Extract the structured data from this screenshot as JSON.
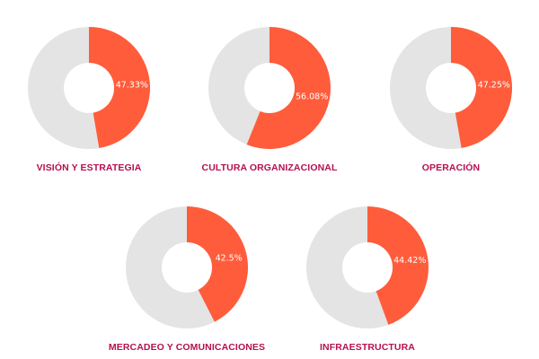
{
  "colors": {
    "value": "#ff5c3b",
    "remainder": "#e4e4e4",
    "hole": "#ffffff",
    "title": "#b5104f",
    "label": "#ffffff"
  },
  "chart_data": [
    {
      "type": "pie",
      "title": "VISIÓN Y ESTRATEGIA",
      "value": 47.33,
      "remainder": 52.67,
      "value_label": "47.33%"
    },
    {
      "type": "pie",
      "title": "CULTURA ORGANIZACIONAL",
      "value": 56.08,
      "remainder": 43.92,
      "value_label": "56.08%"
    },
    {
      "type": "pie",
      "title": "OPERACIÓN",
      "value": 47.25,
      "remainder": 52.75,
      "value_label": "47.25%"
    },
    {
      "type": "pie",
      "title": "MERCADEO Y COMUNICACIONES",
      "value": 42.5,
      "remainder": 57.5,
      "value_label": "42.5%"
    },
    {
      "type": "pie",
      "title": "INFRAESTRUCTURA",
      "value": 44.42,
      "remainder": 55.58,
      "value_label": "44.42%"
    }
  ]
}
